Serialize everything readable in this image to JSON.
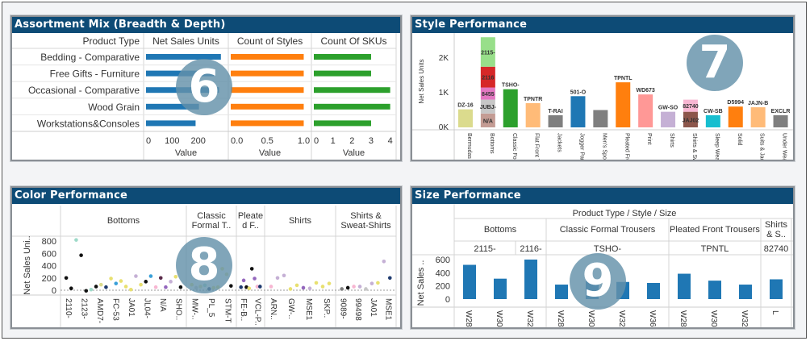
{
  "assortment": {
    "title": "Assortment Mix (Breadth & Depth)",
    "badge": "6",
    "row_header": "Product Type",
    "columns": [
      "Net Sales Units",
      "Count of Styles",
      "Count Of SKUs"
    ],
    "axis_label": "Value",
    "rows": [
      "Bedding - Comparative",
      "Free Gifts - Furniture",
      "Occasional - Comparative",
      "Wood Grain",
      "Workstations&Consoles"
    ],
    "chart_data": {
      "type": "bar",
      "series": [
        {
          "name": "Net Sales Units",
          "values": [
            287,
            260,
            280,
            203,
            190
          ],
          "color": "#1f77b4",
          "ticks": [
            "0",
            "100",
            "200"
          ],
          "tick_values": [
            0,
            100,
            200
          ],
          "max": 300
        },
        {
          "name": "Count of Styles",
          "values": [
            1,
            1,
            1,
            1,
            1
          ],
          "color": "#ff7f0e",
          "ticks": [
            "0.0",
            "0.5",
            "1.0"
          ],
          "tick_values": [
            0,
            0.5,
            1
          ],
          "max": 1.05
        },
        {
          "name": "Count Of SKUs",
          "values": [
            3,
            3,
            4,
            4,
            3
          ],
          "color": "#2ca02c",
          "ticks": [
            "0",
            "1",
            "2",
            "3",
            "4"
          ],
          "tick_values": [
            0,
            1,
            2,
            3,
            4
          ],
          "max": 4.1
        }
      ]
    }
  },
  "style": {
    "title": "Style Performance",
    "badge": "7",
    "chart_data": {
      "type": "bar",
      "ylabel": "Net Sales Units",
      "yticks": [
        "0K",
        "1K",
        "2K"
      ],
      "ytick_values": [
        0,
        1000,
        2000
      ],
      "categories": [
        "Bermudas",
        "Bottoms",
        "Classic Formal T..",
        "Flat Front Trousers",
        "Jackets",
        "Jogger Pants",
        "Men's Sports..",
        "Pleated Front Tr..",
        "Print",
        "Shirts",
        "Shirts & Sw..",
        "Sleep Wear",
        "Solid",
        "Suits & Jackets",
        "Under Wear"
      ],
      "stacks": [
        [
          {
            "label": "DZ-16",
            "value": 520,
            "color": "#dbdb8d"
          }
        ],
        [
          {
            "label": "N/A",
            "value": 400,
            "color": "#c49c94"
          },
          {
            "label": "JUBJ-",
            "value": 400,
            "color": "#c7c7c7"
          },
          {
            "label": "8455",
            "value": 350,
            "color": "#e377c2"
          },
          {
            "label": "2116",
            "value": 600,
            "color": "#d62728"
          },
          {
            "label": "2115-",
            "value": 850,
            "color": "#98df8a"
          }
        ],
        [
          {
            "label": "TSHO-",
            "value": 1100,
            "color": "#2ca02c"
          }
        ],
        [
          {
            "label": "TPNTR",
            "value": 700,
            "color": "#ffbb78"
          }
        ],
        [
          {
            "label": "T-RAI",
            "value": 350,
            "color": "#7f7f7f"
          }
        ],
        [
          {
            "label": "501-O",
            "value": 900,
            "color": "#1f77b4"
          }
        ],
        [
          {
            "label": "",
            "value": 500,
            "color": "#7f7f7f"
          }
        ],
        [
          {
            "label": "TPNTL",
            "value": 1300,
            "color": "#ff7f0e"
          }
        ],
        [
          {
            "label": "WD673",
            "value": 950,
            "color": "#ff9896"
          }
        ],
        [
          {
            "label": "GW-SO",
            "value": 450,
            "color": "#c5b0d5"
          }
        ],
        [
          {
            "label": "JAJ02",
            "value": 450,
            "color": "#8c564b"
          },
          {
            "label": "82740",
            "value": 350,
            "color": "#f7b6d2"
          }
        ],
        [
          {
            "label": "CW-SB",
            "value": 350,
            "color": "#17becf"
          }
        ],
        [
          {
            "label": "D5994",
            "value": 600,
            "color": "#ff7f0e"
          }
        ],
        [
          {
            "label": "JAJN-B",
            "value": 580,
            "color": "#ffbb78"
          }
        ],
        [
          {
            "label": "EXCLR",
            "value": 350,
            "color": "#7f7f7f"
          }
        ]
      ]
    }
  },
  "color": {
    "title": "Color Performance",
    "badge": "8",
    "chart_data": {
      "type": "scatter",
      "ylabel": "Net Sales Uni..",
      "yticks": [
        "0",
        "200",
        "400",
        "600",
        "800"
      ],
      "ytick_values": [
        0,
        200,
        400,
        600,
        800
      ],
      "groups": [
        {
          "name": "Bottoms",
          "labels": [
            "2110-",
            "2123-",
            "AMD7-",
            "FC-53",
            "JA01",
            "JL04-",
            "N/A",
            "SHO.."
          ],
          "points": [
            [
              200,
              "#111"
            ],
            [
              30,
              "#111"
            ],
            [
              820,
              "#9edac9"
            ],
            [
              570,
              "#111"
            ],
            [
              -10,
              "#111"
            ],
            [
              10,
              "#9edac9"
            ],
            [
              60,
              "#111"
            ],
            [
              90,
              "#dbdb8d"
            ],
            [
              50,
              "#1f3b6f"
            ],
            [
              190,
              "#e8e070"
            ],
            [
              110,
              "#3aa0d8"
            ],
            [
              150,
              "#e8e070"
            ],
            [
              60,
              "#e8e070"
            ],
            [
              10,
              "#e8e070"
            ],
            [
              230,
              "#c5b0d5"
            ],
            [
              90,
              "#e8e070"
            ],
            [
              140,
              "#111"
            ],
            [
              230,
              "#3aa0d8"
            ],
            [
              50,
              "#f7b6d2"
            ],
            [
              200,
              "#5a2a4a"
            ],
            [
              50,
              "#9467bd"
            ],
            [
              140,
              "#c5b0d5"
            ],
            [
              220,
              "#e8e070"
            ],
            [
              50,
              "#111"
            ]
          ]
        },
        {
          "name": "Classic Formal T..",
          "labels": [
            "MW-..",
            "PL_5",
            "STM-T"
          ],
          "points": [
            [
              90,
              "#e8e070"
            ],
            [
              40,
              "#c7c7c7"
            ],
            [
              60,
              "#dbdb8d"
            ],
            [
              80,
              "#9edac9"
            ],
            [
              20,
              "#1f3b6f"
            ],
            [
              40,
              "#e8e070"
            ],
            [
              50,
              "#e8e070"
            ],
            [
              350,
              "#e8e070"
            ],
            [
              260,
              "#dbdb8d"
            ],
            [
              70,
              "#111"
            ]
          ]
        },
        {
          "name": "Pleated F..",
          "labels": [
            "FE-B..",
            "VCL-P.."
          ],
          "points": [
            [
              50,
              "#1f3b6f"
            ],
            [
              160,
              "#9467bd"
            ],
            [
              50,
              "#111"
            ],
            [
              30,
              "#e8e070"
            ],
            [
              350,
              "#111"
            ],
            [
              190,
              "#9467bd"
            ],
            [
              60,
              "#f7b6d2"
            ],
            [
              60,
              "#1f3b6f"
            ]
          ]
        },
        {
          "name": "Shirts",
          "labels": [
            "ARN..",
            "GW-..",
            "MSE1",
            "SKP.."
          ],
          "points": [
            [
              60,
              "#f7b6d2"
            ],
            [
              200,
              "#c5b0d5"
            ],
            [
              240,
              "#c5b0d5"
            ],
            [
              20,
              "#e8e070"
            ],
            [
              80,
              "#e8e070"
            ],
            [
              40,
              "#9467bd"
            ],
            [
              30,
              "#c5b0d5"
            ],
            [
              120,
              "#e8e070"
            ],
            [
              60,
              "#e8e070"
            ],
            [
              110,
              "#e8e070"
            ]
          ]
        },
        {
          "name": "Shirts & Sweat-Shirts",
          "labels": [
            "9089-",
            "99498",
            "JA01",
            "MSE1"
          ],
          "points": [
            [
              20,
              "#7f7f7f"
            ],
            [
              40,
              "#111"
            ],
            [
              60,
              "#f7b6d2"
            ],
            [
              60,
              "#c5b0d5"
            ],
            [
              20,
              "#c7c7c7"
            ],
            [
              110,
              "#c5b0d5"
            ],
            [
              120,
              "#e8e070"
            ],
            [
              470,
              "#c5b0d5"
            ],
            [
              200,
              "#1f3b6f"
            ]
          ]
        }
      ]
    }
  },
  "size": {
    "title": "Size Performance",
    "badge": "9",
    "header": "Product Type  /  Style  /  Size",
    "chart_data": {
      "type": "bar",
      "ylabel": "Net Sales ..",
      "yticks": [
        "0",
        "200",
        "400",
        "600"
      ],
      "ytick_values": [
        0,
        200,
        400,
        600
      ],
      "color": "#1f77b4",
      "groups": [
        {
          "name": "Bottoms",
          "styles": [
            {
              "name": "2115-",
              "sizes": [
                [
                  "W28",
                  520
                ],
                [
                  "W30",
                  310
                ]
              ]
            },
            {
              "name": "2116-",
              "sizes": [
                [
                  "W32",
                  600
                ]
              ]
            }
          ]
        },
        {
          "name": "Classic Formal Trousers",
          "styles": [
            {
              "name": "TSHO-",
              "sizes": [
                [
                  "W28",
                  220
                ],
                [
                  "W30",
                  280
                ],
                [
                  "W32",
                  260
                ],
                [
                  "W36",
                  245
                ]
              ]
            }
          ]
        },
        {
          "name": "Pleated Front Trousers",
          "styles": [
            {
              "name": "TPNTL",
              "sizes": [
                [
                  "W28",
                  385
                ],
                [
                  "W30",
                  280
                ],
                [
                  "W32",
                  220
                ]
              ]
            }
          ]
        },
        {
          "name": "Shirts & S..",
          "styles": [
            {
              "name": "82740",
              "sizes": [
                [
                  "L",
                  300
                ]
              ]
            }
          ]
        }
      ]
    }
  }
}
